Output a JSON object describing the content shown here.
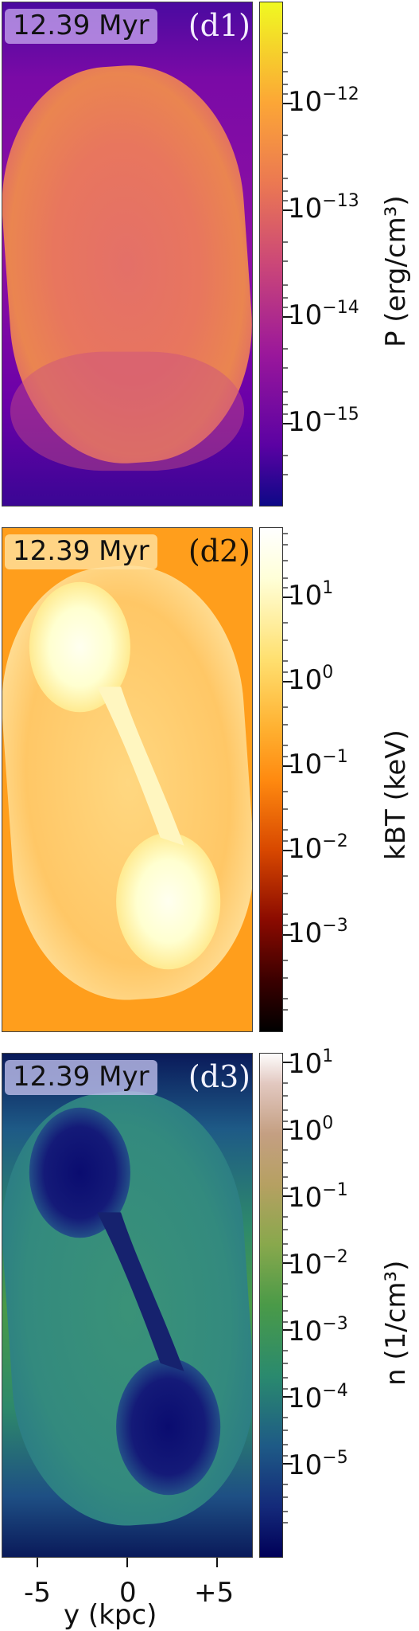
{
  "chart_data": [
    {
      "type": "heatmap",
      "panel_label": "(d1)",
      "time": "12.39 Myr",
      "colormap": "plasma",
      "colorbar_label": "P (erg/cm³)",
      "colorbar_ticks": [
        "10−12",
        "10−13",
        "10−14",
        "10−15"
      ],
      "colorbar_tick_values": [
        1e-12,
        1e-13,
        1e-14,
        1e-15
      ],
      "colorbar_range": [
        2e-16,
        8e-12
      ],
      "log_scale": true
    },
    {
      "type": "heatmap",
      "panel_label": "(d2)",
      "time": "12.39 Myr",
      "colormap": "afmhot",
      "colorbar_label": "kBT (keV)",
      "colorbar_ticks": [
        "101",
        "100",
        "10−1",
        "10−2",
        "10−3"
      ],
      "colorbar_tick_values": [
        10,
        1,
        0.1,
        0.01,
        0.001
      ],
      "colorbar_range": [
        0.0001,
        60
      ],
      "log_scale": true
    },
    {
      "type": "heatmap",
      "panel_label": "(d3)",
      "time": "12.39 Myr",
      "colormap": "gist_earth",
      "colorbar_label": "n (1/cm³)",
      "colorbar_ticks": [
        "101",
        "100",
        "10−1",
        "10−2",
        "10−3",
        "10−4",
        "10−5"
      ],
      "colorbar_tick_values": [
        10,
        1,
        0.1,
        0.01,
        0.001,
        0.0001,
        1e-05
      ],
      "colorbar_range": [
        1e-06,
        20
      ],
      "log_scale": true
    }
  ],
  "x_axis": {
    "label": "y (kpc)",
    "ticks": [
      "-5",
      "0",
      "+5"
    ],
    "tick_values": [
      -5,
      0,
      5
    ],
    "range": [
      -7,
      7
    ]
  },
  "labels": {
    "d1_base": "10",
    "d1_exps": [
      "−12",
      "−13",
      "−14",
      "−15"
    ],
    "d2_base": "10",
    "d2_exps": [
      "1",
      "0",
      "−1",
      "−2",
      "−3"
    ],
    "d3_base": "10",
    "d3_exps": [
      "1",
      "0",
      "−1",
      "−2",
      "−3",
      "−4",
      "−5"
    ]
  },
  "colors": {
    "plasma": [
      "#0d0887",
      "#6a00a8",
      "#b12a90",
      "#e16462",
      "#fca636",
      "#f0f921"
    ],
    "afmhot": [
      "#000000",
      "#5a0000",
      "#c02800",
      "#ff8a10",
      "#ffd860",
      "#ffffff"
    ],
    "gist_earth": [
      "#000058",
      "#1a3c80",
      "#2a7a7a",
      "#4a9a48",
      "#a0a850",
      "#c8a07a",
      "#fdfcfc"
    ]
  }
}
